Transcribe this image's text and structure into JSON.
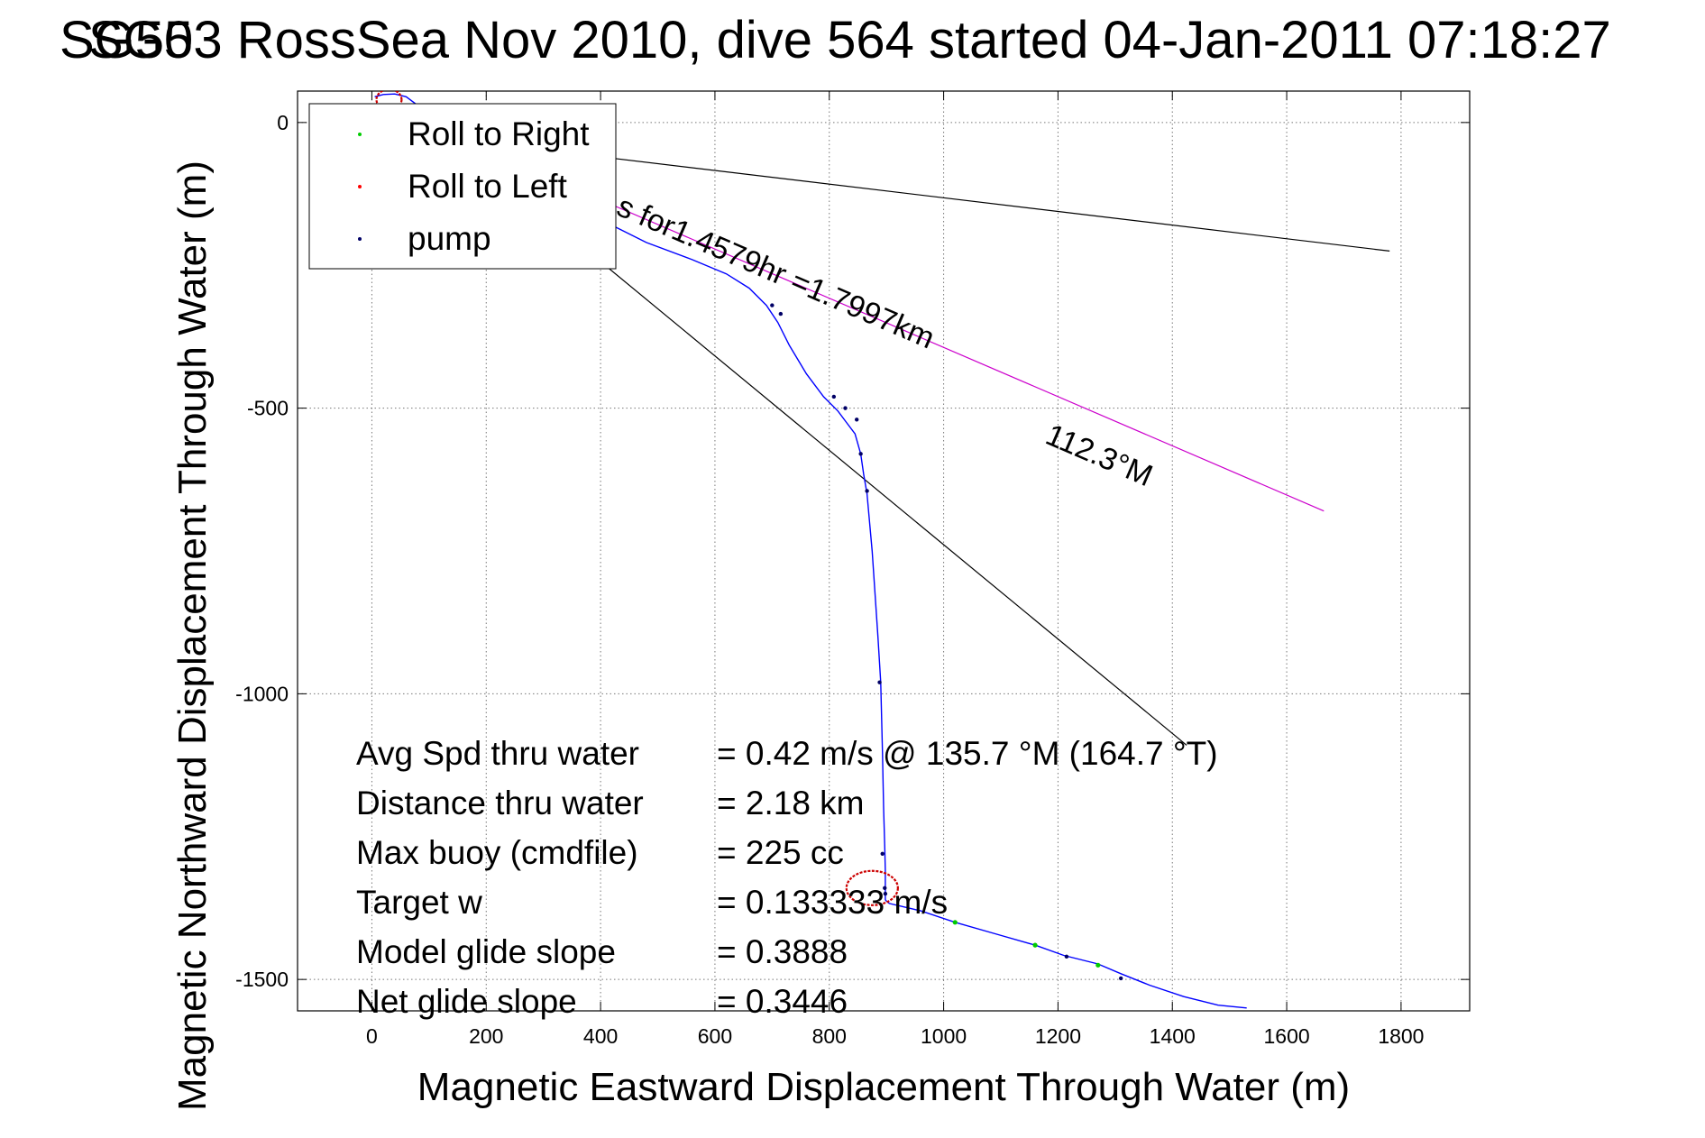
{
  "chart_data": {
    "type": "line",
    "title": "SG503 RossSea Nov 2010, dive 564 started 04-Jan-2011 07:18:27",
    "title_overlap": "SG5",
    "xlabel": "Magnetic Eastward Displacement Through Water (m)",
    "ylabel": "Magnetic Northward Displacement Through Water (m)",
    "xlim": [
      -130,
      1920
    ],
    "ylim": [
      -1555,
      55
    ],
    "xticks": [
      0,
      200,
      400,
      600,
      800,
      1000,
      1200,
      1400,
      1600,
      1800
    ],
    "yticks": [
      0,
      -500,
      -1000,
      -1500
    ],
    "grid": true,
    "legend_position": "top-left",
    "legend": [
      {
        "label": "Roll to Right",
        "color": "#00cc00"
      },
      {
        "label": "Roll to Left",
        "color": "#ff0000"
      },
      {
        "label": "pump",
        "color": "#000066"
      }
    ],
    "track": {
      "color": "#0000ff",
      "x": [
        5,
        20,
        40,
        60,
        80,
        100,
        120,
        160,
        220,
        300,
        400,
        480,
        560,
        620,
        660,
        690,
        710,
        730,
        760,
        790,
        815,
        830,
        845,
        855,
        860,
        866,
        875,
        885,
        890,
        893,
        895,
        897,
        898,
        898,
        898,
        898,
        898,
        899,
        905,
        960,
        1020,
        1090,
        1160,
        1210,
        1270,
        1310,
        1360,
        1420,
        1480,
        1530
      ],
      "y": [
        45,
        49,
        50,
        45,
        30,
        10,
        -15,
        -50,
        -90,
        -130,
        -170,
        -210,
        -240,
        -265,
        -290,
        -320,
        -350,
        -390,
        -440,
        -480,
        -505,
        -525,
        -545,
        -580,
        -615,
        -650,
        -750,
        -900,
        -980,
        -1100,
        -1200,
        -1270,
        -1310,
        -1330,
        -1345,
        -1355,
        -1360,
        -1362,
        -1367,
        -1380,
        -1400,
        -1420,
        -1440,
        -1458,
        -1473,
        -1490,
        -1510,
        -1530,
        -1545,
        -1550
      ]
    },
    "pump_points": {
      "x": [
        700,
        715,
        808,
        828,
        848,
        855,
        866,
        888,
        893,
        897,
        898,
        1215,
        1310
      ],
      "y": [
        -320,
        -335,
        -480,
        -500,
        -520,
        -580,
        -645,
        -980,
        -1280,
        -1340,
        -1350,
        -1460,
        -1498
      ]
    },
    "roll_right_points": {
      "x": [
        1020,
        1160,
        1270
      ],
      "y": [
        -1400,
        -1440,
        -1475
      ]
    },
    "roll_left_loops": [
      {
        "cx": 30,
        "cy": 40,
        "rx": 22,
        "ry": 18
      },
      {
        "cx": 875,
        "cy": -1340,
        "rx": 45,
        "ry": 30
      }
    ],
    "lines": [
      {
        "name": "heading-line",
        "color": "#cc00cc",
        "x": [
          190,
          1665
        ],
        "y": [
          -45,
          -680
        ]
      },
      {
        "name": "upper-black-line",
        "color": "#000000",
        "x": [
          190,
          1780
        ],
        "y": [
          -35,
          -225
        ]
      },
      {
        "name": "lower-black-line",
        "color": "#000000",
        "x": [
          190,
          1425
        ],
        "y": [
          -70,
          -1090
        ]
      }
    ],
    "annotations": [
      {
        "text": "s for1.4579hr =1.7997km",
        "x": 425,
        "y": -160,
        "angle": 23.3
      },
      {
        "text": "112.3°M",
        "x": 1175,
        "y": -560,
        "angle": 23.3
      }
    ],
    "stats": [
      {
        "label": "Avg Spd thru water",
        "value": "=  0.42 m/s @ 135.7 °M (164.7 °T)"
      },
      {
        "label": "Distance thru water",
        "value": "=  2.18 km"
      },
      {
        "label": "Max buoy (cmdfile)",
        "value": "= 225 cc"
      },
      {
        "label": "Target w",
        "value": "= 0.133333 m/s"
      },
      {
        "label": "Model glide slope",
        "value": "= 0.3888"
      },
      {
        "label": "Net glide slope",
        "value": "= 0.3446"
      }
    ]
  }
}
